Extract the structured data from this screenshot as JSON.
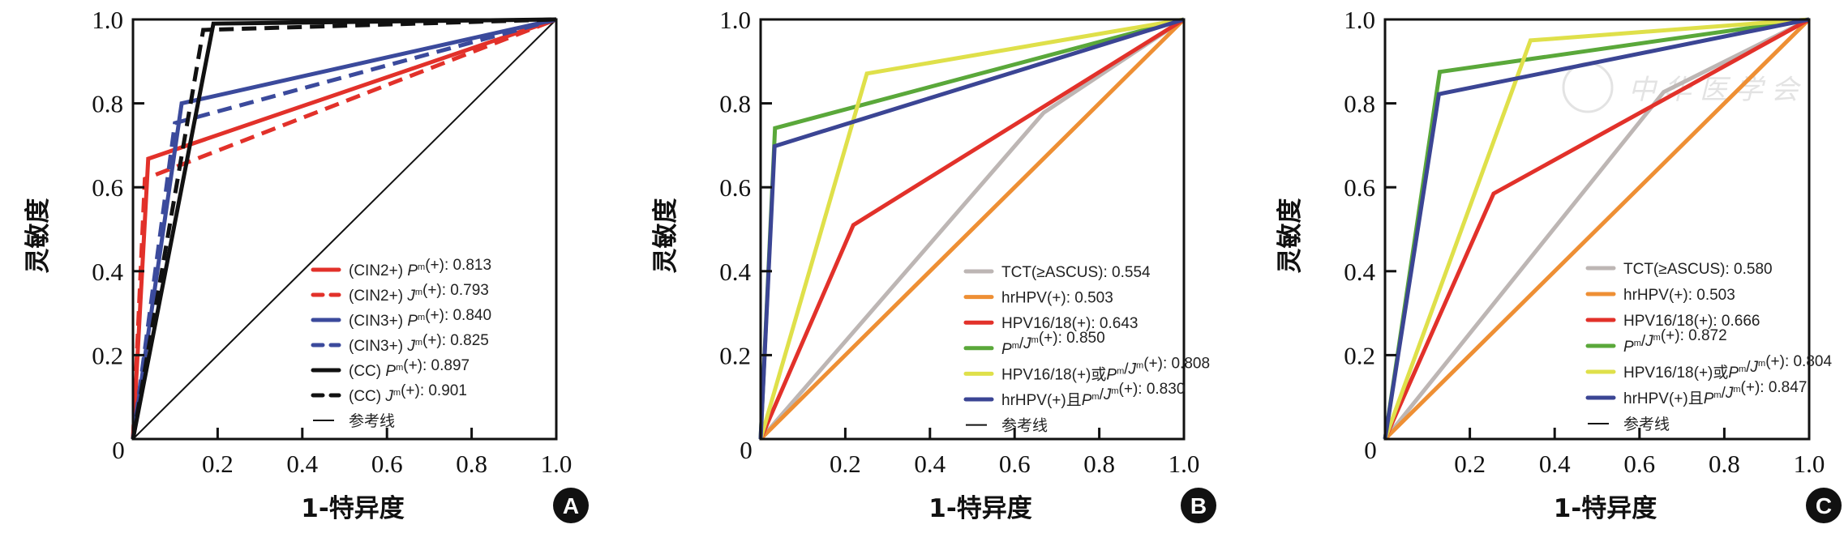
{
  "chart_data": [
    {
      "type": "line",
      "panel": "A",
      "xlabel": "1-特异度",
      "ylabel": "灵敏度",
      "xlim": [
        0,
        1
      ],
      "ylim": [
        0,
        1
      ],
      "xticks": [
        "0.2",
        "0.4",
        "0.6",
        "0.8",
        "1.0"
      ],
      "yticks": [
        "0.2",
        "0.4",
        "0.6",
        "0.8",
        "1.0"
      ],
      "origin_label": "0",
      "grid": false,
      "legend_position": "bottom-right",
      "series": [
        {
          "name": "(CIN2+) Pᵐ(+): 0.813",
          "color": "#e2312a",
          "dash": false,
          "x": [
            0,
            0.036,
            1
          ],
          "y": [
            0,
            0.668,
            1
          ]
        },
        {
          "name": "(CIN2+) Jᵐ(+): 0.793",
          "color": "#e2312a",
          "dash": true,
          "x": [
            0,
            0.028,
            1
          ],
          "y": [
            0,
            0.62,
            1
          ]
        },
        {
          "name": "(CIN3+) Pᵐ(+): 0.840",
          "color": "#3b4a9c",
          "dash": false,
          "x": [
            0,
            0.115,
            1
          ],
          "y": [
            0,
            0.8,
            1
          ]
        },
        {
          "name": "(CIN3+) Jᵐ(+): 0.825",
          "color": "#3b4a9c",
          "dash": true,
          "x": [
            0,
            0.099,
            1
          ],
          "y": [
            0,
            0.753,
            1
          ]
        },
        {
          "name": "(CC) Pᵐ(+): 0.897",
          "color": "#111111",
          "dash": false,
          "x": [
            0,
            0.19,
            1
          ],
          "y": [
            0,
            0.99,
            1
          ]
        },
        {
          "name": "(CC) Jᵐ(+): 0.901",
          "color": "#111111",
          "dash": true,
          "x": [
            0,
            0.166,
            1
          ],
          "y": [
            0,
            0.975,
            1
          ]
        },
        {
          "name": "参考线",
          "color": "#111111",
          "dash": false,
          "reference": true,
          "x": [
            0,
            1
          ],
          "y": [
            0,
            1
          ]
        }
      ]
    },
    {
      "type": "line",
      "panel": "B",
      "xlabel": "1-特异度",
      "ylabel": "灵敏度",
      "xlim": [
        0,
        1
      ],
      "ylim": [
        0,
        1
      ],
      "xticks": [
        "0.2",
        "0.4",
        "0.6",
        "0.8",
        "1.0"
      ],
      "yticks": [
        "0.2",
        "0.4",
        "0.6",
        "0.8",
        "1.0"
      ],
      "origin_label": "0",
      "grid": false,
      "legend_position": "bottom-right",
      "series": [
        {
          "name": "TCT(≥ASCUS): 0.554",
          "color": "#bdb6b4",
          "x": [
            0,
            0.669,
            1
          ],
          "y": [
            0,
            0.778,
            1
          ]
        },
        {
          "name": "hrHPV(+): 0.503",
          "color": "#ee8f34",
          "x": [
            0,
            1
          ],
          "y": [
            0,
            1
          ]
        },
        {
          "name": "HPV16/18(+): 0.643",
          "color": "#e2312a",
          "x": [
            0,
            0.219,
            1
          ],
          "y": [
            0,
            0.51,
            1
          ]
        },
        {
          "name": "Pᵐ/Jᵐ(+): 0.850",
          "color": "#5aa83a",
          "x": [
            0,
            0.034,
            1
          ],
          "y": [
            0,
            0.741,
            1
          ]
        },
        {
          "name": "HPV16/18(+)或Pᵐ/Jᵐ(+): 0.808",
          "color": "#dfe04a",
          "x": [
            0,
            0.251,
            1
          ],
          "y": [
            0,
            0.871,
            1
          ]
        },
        {
          "name": "hrHPV(+)且Pᵐ/Jᵐ(+): 0.830",
          "color": "#3b4594",
          "x": [
            0,
            0.033,
            1
          ],
          "y": [
            0,
            0.698,
            1
          ]
        },
        {
          "name": "参考线",
          "color": "#111111",
          "reference": true,
          "x": [
            0,
            1
          ],
          "y": [
            0,
            1
          ]
        }
      ]
    },
    {
      "type": "line",
      "panel": "C",
      "xlabel": "1-特异度",
      "ylabel": "灵敏度",
      "xlim": [
        0,
        1
      ],
      "ylim": [
        0,
        1
      ],
      "xticks": [
        "0.2",
        "0.4",
        "0.6",
        "0.8",
        "1.0"
      ],
      "yticks": [
        "0.2",
        "0.4",
        "0.6",
        "0.8",
        "1.0"
      ],
      "origin_label": "0",
      "grid": false,
      "legend_position": "bottom-right",
      "watermark": "中华医学会",
      "series": [
        {
          "name": "TCT(≥ASCUS): 0.580",
          "color": "#bdb6b4",
          "x": [
            0,
            0.657,
            1
          ],
          "y": [
            0,
            0.827,
            1
          ]
        },
        {
          "name": "hrHPV(+): 0.503",
          "color": "#ee8f34",
          "x": [
            0,
            1
          ],
          "y": [
            0,
            1
          ]
        },
        {
          "name": "HPV16/18(+): 0.666",
          "color": "#e2312a",
          "x": [
            0,
            0.256,
            1
          ],
          "y": [
            0,
            0.585,
            1
          ]
        },
        {
          "name": "Pᵐ/Jᵐ(+): 0.872",
          "color": "#5aa83a",
          "x": [
            0,
            0.129,
            1
          ],
          "y": [
            0,
            0.875,
            1
          ]
        },
        {
          "name": "HPV16/18(+)或Pᵐ/Jᵐ(+): 0.804",
          "color": "#dfe04a",
          "x": [
            0,
            0.343,
            1
          ],
          "y": [
            0,
            0.95,
            1
          ]
        },
        {
          "name": "hrHPV(+)且Pᵐ/Jᵐ(+): 0.847",
          "color": "#3b4594",
          "x": [
            0,
            0.127,
            1
          ],
          "y": [
            0,
            0.822,
            1
          ]
        },
        {
          "name": "参考线",
          "color": "#111111",
          "reference": true,
          "x": [
            0,
            1
          ],
          "y": [
            0,
            1
          ]
        }
      ]
    }
  ]
}
